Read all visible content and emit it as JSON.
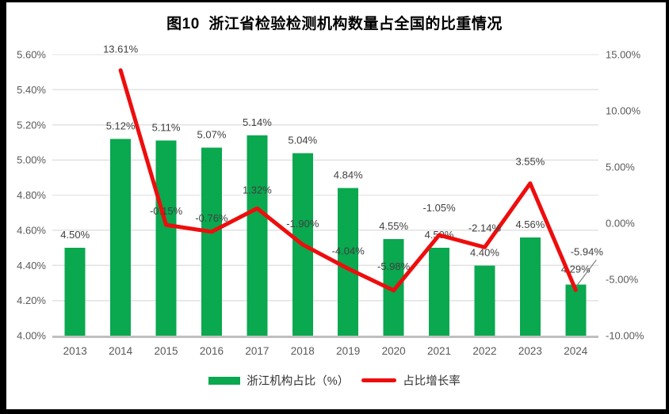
{
  "title": "图10  浙江省检验检测机构数量占全国的比重情况",
  "colors": {
    "bar": "#0aa84f",
    "line": "#ee0d0d",
    "grid": "#e2e2e2",
    "axis_line": "#bfbfbf",
    "axis_text": "#595959",
    "data_label": "#3f3f3f",
    "leader": "#808080",
    "frame": "#000000",
    "background": "#ffffff"
  },
  "chart_data": {
    "type": "combo-bar-line",
    "categories": [
      "2013",
      "2014",
      "2015",
      "2016",
      "2017",
      "2018",
      "2019",
      "2020",
      "2021",
      "2022",
      "2023",
      "2024"
    ],
    "series": [
      {
        "name": "浙江机构占比（%）",
        "chart_type": "bar",
        "axis": "left",
        "values": [
          4.5,
          5.12,
          5.11,
          5.07,
          5.14,
          5.04,
          4.84,
          4.55,
          4.5,
          4.4,
          4.56,
          4.29
        ],
        "labels": [
          "4.50%",
          "5.12%",
          "5.11%",
          "5.07%",
          "5.14%",
          "5.04%",
          "4.84%",
          "4.55%",
          "4.50%",
          "4.40%",
          "4.56%",
          "4.29%"
        ]
      },
      {
        "name": "占比增长率",
        "chart_type": "line",
        "axis": "right",
        "start_category": "2014",
        "values": [
          13.61,
          -0.15,
          -0.76,
          1.32,
          -1.9,
          -4.04,
          -5.98,
          -1.05,
          -2.14,
          3.55,
          -5.94
        ],
        "labels": [
          "13.61%",
          "-0.15%",
          "-0.76%",
          "1.32%",
          "-1.90%",
          "-4.04%",
          "-5.98%",
          "-1.05%",
          "-2.14%",
          "3.55%",
          "-5.94%"
        ]
      }
    ],
    "left_axis": {
      "min": 4.0,
      "max": 5.6,
      "step": 0.2,
      "ticks": [
        "4.00%",
        "4.20%",
        "4.40%",
        "4.60%",
        "4.80%",
        "5.00%",
        "5.20%",
        "5.40%",
        "5.60%"
      ]
    },
    "right_axis": {
      "min": -10,
      "max": 15,
      "step": 5,
      "ticks": [
        "-10.00%",
        "-5.00%",
        "0.00%",
        "5.00%",
        "10.00%",
        "15.00%"
      ]
    },
    "legend": {
      "position": "bottom",
      "entries": [
        "浙江机构占比（%）",
        "占比增长率"
      ]
    },
    "grid": true
  }
}
